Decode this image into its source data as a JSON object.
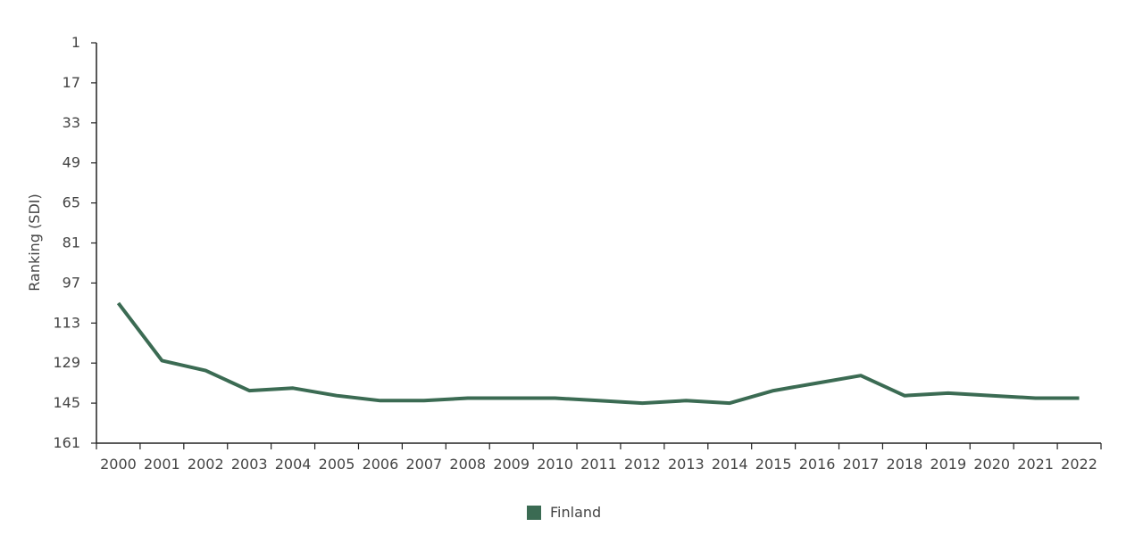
{
  "chart_data": {
    "type": "line",
    "ylabel": "Ranking (SDI)",
    "xlabel": "",
    "y_inverted": true,
    "ylim": [
      1,
      161
    ],
    "yticks": [
      "1",
      "17",
      "33",
      "49",
      "65",
      "81",
      "97",
      "113",
      "129",
      "145",
      "161"
    ],
    "categories": [
      "2000",
      "2001",
      "2002",
      "2003",
      "2004",
      "2005",
      "2006",
      "2007",
      "2008",
      "2009",
      "2010",
      "2011",
      "2012",
      "2013",
      "2014",
      "2015",
      "2016",
      "2017",
      "2018",
      "2019",
      "2020",
      "2021",
      "2022"
    ],
    "series": [
      {
        "name": "Finland",
        "color": "#3b6b53",
        "values": [
          105,
          128,
          132,
          140,
          139,
          142,
          144,
          144,
          143,
          143,
          143,
          144,
          145,
          144,
          145,
          140,
          137,
          134,
          142,
          141,
          142,
          143,
          143
        ]
      }
    ],
    "legend_position": "bottom-center",
    "grid": false
  }
}
